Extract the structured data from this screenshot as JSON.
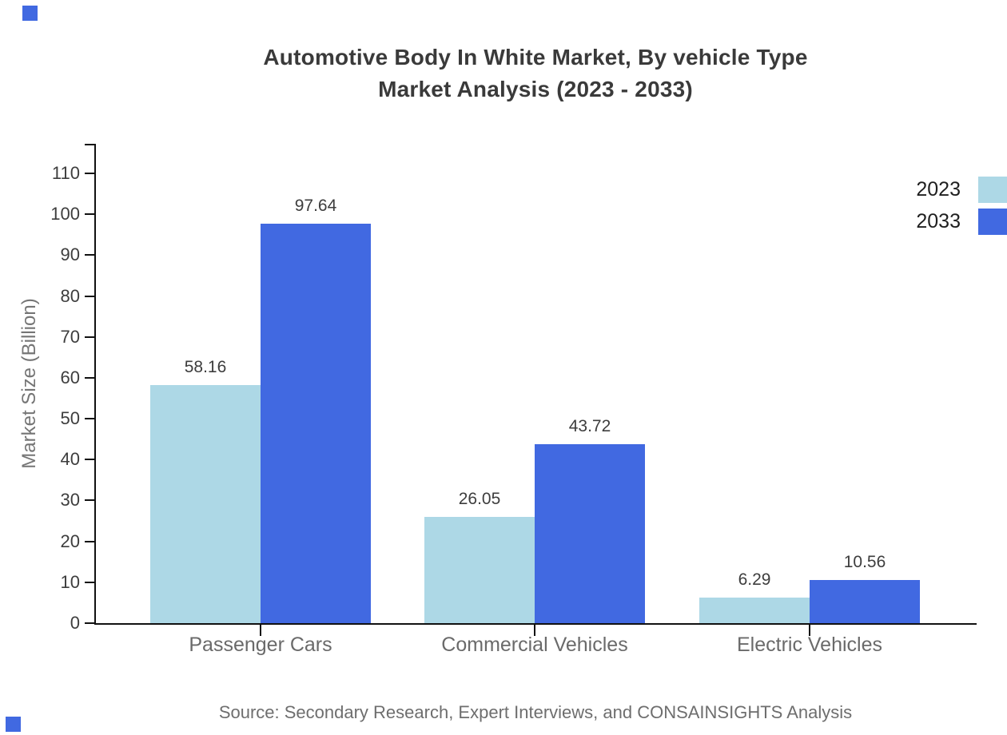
{
  "page": {
    "background": "#ffffff",
    "accent_color": "#4169e1"
  },
  "chart_data": {
    "type": "bar",
    "title": "Automotive Body In White Market, By vehicle Type Market Analysis (2023 - 2033)",
    "title_line1": "Automotive Body In White Market, By vehicle Type",
    "title_line2": "Market Analysis (2023 - 2033)",
    "ylabel": "Market Size (Billion)",
    "xlabel": "",
    "ylim": [
      0,
      110
    ],
    "yticks": [
      0,
      10,
      20,
      30,
      40,
      50,
      60,
      70,
      80,
      90,
      100,
      110
    ],
    "grid": false,
    "legend_position": "top-right",
    "categories": [
      "Passenger Cars",
      "Commercial Vehicles",
      "Electric Vehicles"
    ],
    "series": [
      {
        "name": "2023",
        "color": "#add8e6",
        "values": [
          58.16,
          26.05,
          6.29
        ],
        "labels": [
          "58.16",
          "26.05",
          "6.29"
        ]
      },
      {
        "name": "2033",
        "color": "#4169e1",
        "values": [
          97.64,
          43.72,
          10.56
        ],
        "labels": [
          "97.64",
          "43.72",
          "10.56"
        ]
      }
    ]
  },
  "source": {
    "text": "Source: Secondary Research, Expert Interviews, and CONSAINSIGHTS Analysis"
  }
}
